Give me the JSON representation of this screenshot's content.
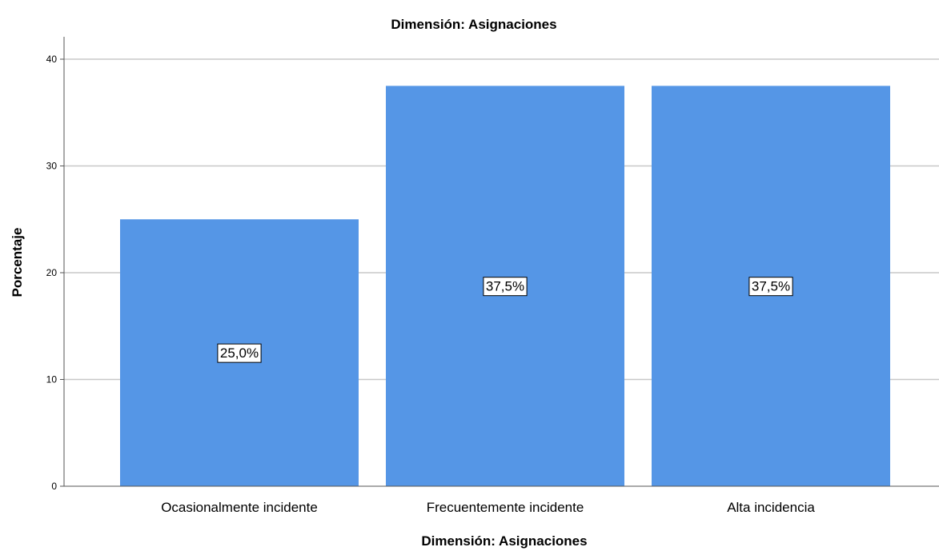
{
  "colors": {
    "bar": "#5596e6",
    "grid": "#c8c8c8",
    "axis": "#555555"
  },
  "chart_data": {
    "type": "bar",
    "title": "Dimensión: Asignaciones",
    "xlabel": "Dimensión: Asignaciones",
    "ylabel": "Porcentaje",
    "categories": [
      "Ocasionalmente incidente",
      "Frecuentemente incidente",
      "Alta incidencia"
    ],
    "values": [
      25.0,
      37.5,
      37.5
    ],
    "data_labels": [
      "25,0%",
      "37,5%",
      "37,5%"
    ],
    "ylim": [
      0,
      40
    ],
    "yticks": [
      0,
      10,
      20,
      30,
      40
    ],
    "grid": true,
    "legend": "none"
  }
}
